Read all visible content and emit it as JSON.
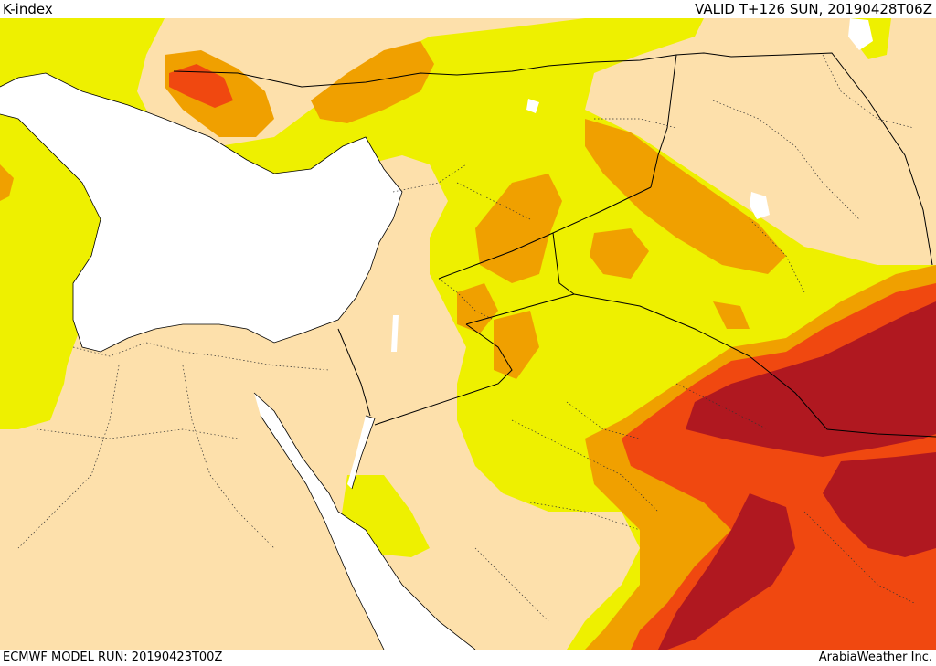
{
  "header": {
    "title": "K-index",
    "valid": "VALID T+126 SUN, 20190428T06Z"
  },
  "footer": {
    "model_run": "ECMWF MODEL RUN: 20190423T00Z",
    "credit": "ArabiaWeather Inc."
  },
  "colors": {
    "land": "#fde0ab",
    "sea": "#ffffff",
    "k_low": "#eef000",
    "k_mid": "#f0a000",
    "k_high": "#f04810",
    "k_max": "#b01820",
    "borders": "#000000"
  }
}
